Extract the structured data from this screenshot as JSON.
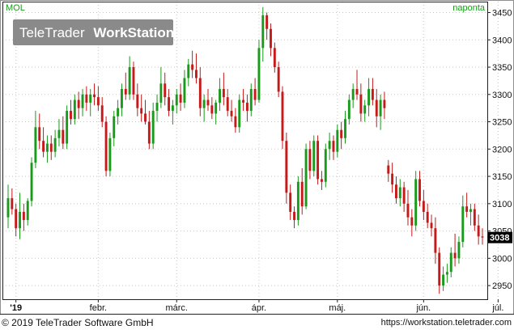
{
  "chart_data": {
    "type": "candlestick",
    "symbol": "MOL",
    "interval": "naponta",
    "watermark": {
      "brand": "TeleTrader",
      "product": "WorkStation"
    },
    "last_value": "3038",
    "ylim": [
      2925,
      3470
    ],
    "yticks": [
      2950,
      3000,
      3050,
      3100,
      3150,
      3200,
      3250,
      3300,
      3350,
      3400,
      3450
    ],
    "xticks": [
      {
        "label": "'19",
        "bold": true,
        "index": 2
      },
      {
        "label": "febr.",
        "index": 23
      },
      {
        "label": "márc.",
        "index": 43
      },
      {
        "label": "ápr.",
        "index": 64
      },
      {
        "label": "máj.",
        "index": 84
      },
      {
        "label": "jún.",
        "index": 106
      },
      {
        "label": "júl.",
        "index": 125
      }
    ],
    "grid": true,
    "up_color": "#1a9a1a",
    "down_color": "#c41a1a",
    "candles": [
      [
        3075,
        3135,
        3055,
        3110
      ],
      [
        3110,
        3128,
        3080,
        3090
      ],
      [
        3090,
        3100,
        3040,
        3055
      ],
      [
        3055,
        3120,
        3035,
        3085
      ],
      [
        3085,
        3100,
        3050,
        3070
      ],
      [
        3070,
        3110,
        3060,
        3105
      ],
      [
        3105,
        3185,
        3095,
        3175
      ],
      [
        3175,
        3270,
        3165,
        3240
      ],
      [
        3240,
        3265,
        3200,
        3215
      ],
      [
        3215,
        3240,
        3185,
        3195
      ],
      [
        3195,
        3225,
        3175,
        3210
      ],
      [
        3210,
        3225,
        3180,
        3195
      ],
      [
        3195,
        3235,
        3185,
        3220
      ],
      [
        3220,
        3255,
        3205,
        3235
      ],
      [
        3235,
        3260,
        3200,
        3210
      ],
      [
        3210,
        3280,
        3200,
        3270
      ],
      [
        3270,
        3290,
        3245,
        3255
      ],
      [
        3255,
        3300,
        3245,
        3290
      ],
      [
        3290,
        3305,
        3255,
        3275
      ],
      [
        3275,
        3310,
        3260,
        3300
      ],
      [
        3300,
        3315,
        3270,
        3285
      ],
      [
        3285,
        3310,
        3260,
        3300
      ],
      [
        3300,
        3320,
        3280,
        3295
      ],
      [
        3295,
        3315,
        3270,
        3280
      ],
      [
        3280,
        3295,
        3240,
        3250
      ],
      [
        3250,
        3260,
        3150,
        3160
      ],
      [
        3160,
        3230,
        3150,
        3220
      ],
      [
        3220,
        3270,
        3205,
        3260
      ],
      [
        3260,
        3290,
        3245,
        3275
      ],
      [
        3275,
        3320,
        3260,
        3310
      ],
      [
        3310,
        3340,
        3290,
        3300
      ],
      [
        3300,
        3370,
        3290,
        3350
      ],
      [
        3350,
        3360,
        3290,
        3300
      ],
      [
        3300,
        3320,
        3260,
        3275
      ],
      [
        3275,
        3300,
        3250,
        3265
      ],
      [
        3265,
        3290,
        3245,
        3250
      ],
      [
        3250,
        3270,
        3200,
        3210
      ],
      [
        3210,
        3285,
        3200,
        3270
      ],
      [
        3270,
        3300,
        3250,
        3285
      ],
      [
        3285,
        3350,
        3275,
        3320
      ],
      [
        3320,
        3340,
        3280,
        3295
      ],
      [
        3295,
        3310,
        3260,
        3270
      ],
      [
        3270,
        3290,
        3245,
        3280
      ],
      [
        3280,
        3310,
        3265,
        3300
      ],
      [
        3300,
        3320,
        3270,
        3285
      ],
      [
        3285,
        3345,
        3275,
        3330
      ],
      [
        3330,
        3365,
        3315,
        3355
      ],
      [
        3355,
        3380,
        3330,
        3345
      ],
      [
        3345,
        3375,
        3320,
        3330
      ],
      [
        3330,
        3350,
        3260,
        3275
      ],
      [
        3275,
        3300,
        3250,
        3290
      ],
      [
        3290,
        3310,
        3270,
        3280
      ],
      [
        3280,
        3295,
        3255,
        3265
      ],
      [
        3265,
        3290,
        3245,
        3285
      ],
      [
        3285,
        3330,
        3270,
        3310
      ],
      [
        3310,
        3340,
        3280,
        3295
      ],
      [
        3295,
        3310,
        3260,
        3270
      ],
      [
        3270,
        3290,
        3250,
        3260
      ],
      [
        3260,
        3275,
        3230,
        3240
      ],
      [
        3240,
        3300,
        3230,
        3290
      ],
      [
        3290,
        3310,
        3270,
        3285
      ],
      [
        3285,
        3300,
        3250,
        3270
      ],
      [
        3270,
        3320,
        3260,
        3310
      ],
      [
        3310,
        3330,
        3280,
        3290
      ],
      [
        3290,
        3400,
        3285,
        3385
      ],
      [
        3385,
        3460,
        3360,
        3445
      ],
      [
        3445,
        3450,
        3400,
        3420
      ],
      [
        3420,
        3430,
        3370,
        3385
      ],
      [
        3385,
        3395,
        3340,
        3350
      ],
      [
        3350,
        3360,
        3295,
        3305
      ],
      [
        3305,
        3315,
        3200,
        3215
      ],
      [
        3215,
        3230,
        3100,
        3120
      ],
      [
        3120,
        3135,
        3070,
        3085
      ],
      [
        3085,
        3095,
        3055,
        3070
      ],
      [
        3070,
        3150,
        3060,
        3140
      ],
      [
        3140,
        3165,
        3080,
        3095
      ],
      [
        3095,
        3210,
        3090,
        3200
      ],
      [
        3200,
        3215,
        3145,
        3160
      ],
      [
        3160,
        3225,
        3150,
        3215
      ],
      [
        3215,
        3225,
        3135,
        3145
      ],
      [
        3145,
        3160,
        3125,
        3140
      ],
      [
        3140,
        3210,
        3130,
        3200
      ],
      [
        3200,
        3230,
        3180,
        3215
      ],
      [
        3215,
        3225,
        3180,
        3195
      ],
      [
        3195,
        3245,
        3185,
        3235
      ],
      [
        3235,
        3250,
        3200,
        3220
      ],
      [
        3220,
        3270,
        3210,
        3255
      ],
      [
        3255,
        3300,
        3245,
        3290
      ],
      [
        3290,
        3320,
        3275,
        3310
      ],
      [
        3310,
        3345,
        3290,
        3300
      ],
      [
        3300,
        3320,
        3250,
        3265
      ],
      [
        3265,
        3290,
        3250,
        3280
      ],
      [
        3280,
        3330,
        3260,
        3310
      ],
      [
        3310,
        3330,
        3280,
        3290
      ],
      [
        3290,
        3310,
        3240,
        3260
      ],
      [
        3260,
        3300,
        3235,
        3290
      ],
      [
        3290,
        3305,
        3255,
        3275
      ],
      [
        3170,
        3180,
        3140,
        3155
      ],
      [
        3155,
        3175,
        3120,
        3135
      ],
      [
        3135,
        3150,
        3100,
        3110
      ],
      [
        3110,
        3145,
        3095,
        3130
      ],
      [
        3130,
        3140,
        3085,
        3100
      ],
      [
        3100,
        3125,
        3060,
        3075
      ],
      [
        3075,
        3090,
        3040,
        3060
      ],
      [
        3060,
        3160,
        3050,
        3145
      ],
      [
        3145,
        3160,
        3095,
        3105
      ],
      [
        3105,
        3125,
        3070,
        3085
      ],
      [
        3085,
        3100,
        3055,
        3065
      ],
      [
        3065,
        3080,
        3040,
        3055
      ],
      [
        3055,
        3075,
        2990,
        3010
      ],
      [
        3010,
        3020,
        2935,
        2950
      ],
      [
        2950,
        2985,
        2940,
        2970
      ],
      [
        2970,
        2990,
        2955,
        2975
      ],
      [
        2975,
        3020,
        2965,
        3010
      ],
      [
        3010,
        3045,
        2985,
        3000
      ],
      [
        3000,
        3040,
        2990,
        3030
      ],
      [
        3030,
        3115,
        3020,
        3095
      ],
      [
        3095,
        3120,
        3075,
        3085
      ],
      [
        3085,
        3100,
        3060,
        3090
      ],
      [
        3090,
        3100,
        3050,
        3060
      ],
      [
        3060,
        3080,
        3025,
        3040
      ],
      [
        3040,
        3055,
        3025,
        3038
      ]
    ]
  },
  "footer": {
    "copyright": "© 2019 TeleTrader Software GmbH",
    "url": "https://workstation.teletrader.com"
  }
}
